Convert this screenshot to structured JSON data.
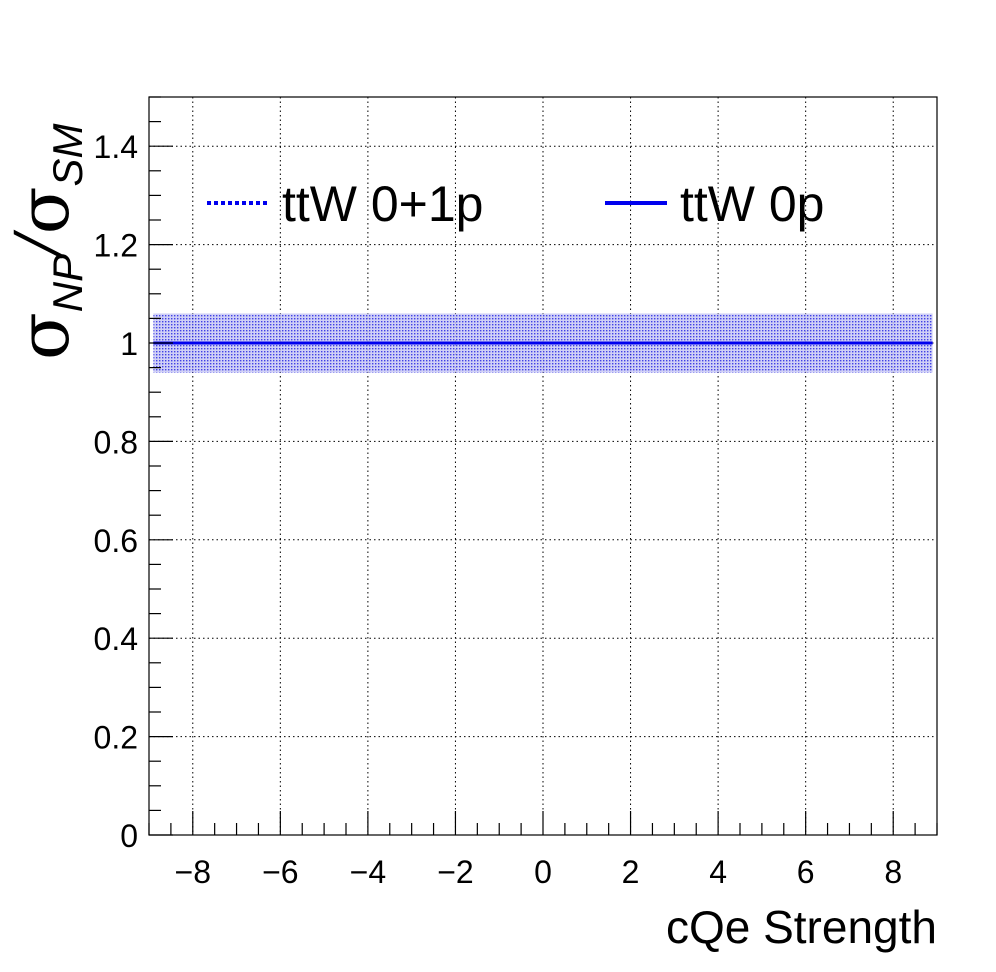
{
  "chart_data": {
    "type": "line",
    "title": "",
    "xlabel": "cQe Strength",
    "ylabel": {
      "symbol": "σ",
      "numerator_sub": "NP",
      "slash": "/",
      "denominator_sub": "SM"
    },
    "xlim": [
      -9,
      9
    ],
    "ylim": [
      0,
      1.5
    ],
    "x_ticks": [
      -8,
      -6,
      -4,
      -2,
      0,
      2,
      4,
      6,
      8
    ],
    "x_tick_labels": [
      "−8",
      "−6",
      "−4",
      "−2",
      "0",
      "2",
      "4",
      "6",
      "8"
    ],
    "y_ticks": [
      0,
      0.2,
      0.4,
      0.6,
      0.8,
      1.0,
      1.2,
      1.4
    ],
    "y_tick_labels": [
      "0",
      "0.2",
      "0.4",
      "0.6",
      "0.8",
      "1",
      "1.2",
      "1.4"
    ],
    "grid": true,
    "legend_placement": "top",
    "series": [
      {
        "name": "ttW 0+1p",
        "style": "dotted",
        "color": "#0000ee",
        "x": [
          -8.9,
          8.9
        ],
        "y": [
          1.0,
          1.0
        ],
        "band": {
          "low": 0.94,
          "high": 1.06
        }
      },
      {
        "name": "ttW 0p",
        "style": "solid",
        "color": "#0000ee",
        "x": [
          -8.9,
          8.9
        ],
        "y": [
          1.0,
          1.0
        ]
      }
    ]
  }
}
